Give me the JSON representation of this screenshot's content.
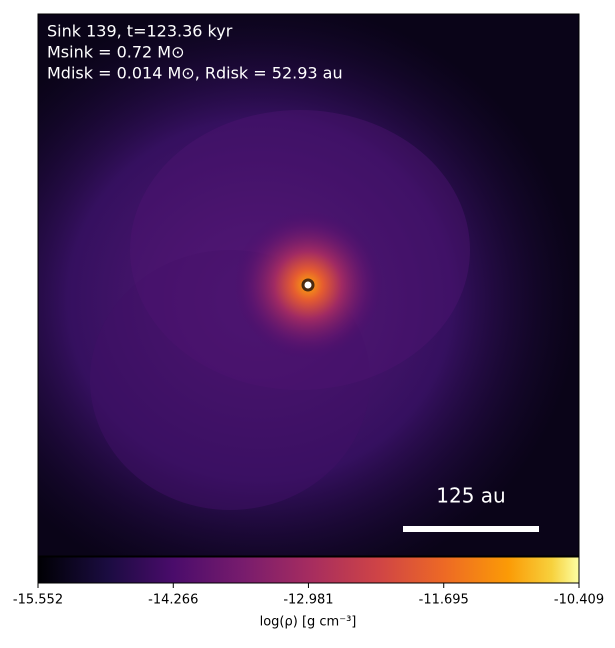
{
  "chart_data": {
    "type": "image",
    "annotations": [
      "Sink 139, t=123.36 kyr",
      "Msink = 0.72 M⊙",
      "Mdisk = 0.014 M⊙, Rdisk = 52.93 au"
    ],
    "scale_label": "125 au",
    "colorbar": {
      "label": "log(ρ) [g cm⁻³]",
      "lim": [
        -15.552,
        -10.409
      ],
      "ticks": [
        -15.552,
        -14.266,
        -12.981,
        -11.695,
        -10.409
      ]
    }
  }
}
